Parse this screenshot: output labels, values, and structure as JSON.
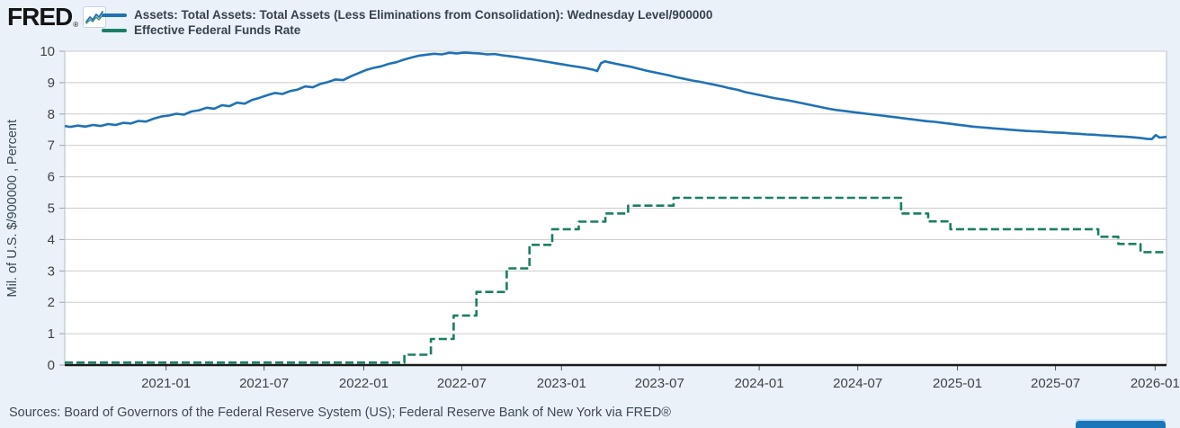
{
  "header": {
    "logo_text": "FRED",
    "logo_registered": "®",
    "legend": [
      {
        "label": "Assets: Total Assets: Total Assets (Less Eliminations from Consolidation): Wednesday Level/900000",
        "color": "#2171b5"
      },
      {
        "label": "Effective Federal Funds Rate",
        "color": "#1b7e66"
      }
    ]
  },
  "footer": {
    "sources": "Sources: Board of Governors of the Federal Reserve System (US); Federal Reserve Bank of New York via FRED®"
  },
  "colors": {
    "page_background": "#eaf1f9",
    "plot_background": "#ffffff",
    "gridline": "#cbcbcb",
    "axis_line": "#1a1a1a",
    "tick_label": "#424242",
    "assets_line": "#2171b5",
    "effr_line": "#1b7e66"
  },
  "chart_data": {
    "type": "line",
    "title": "",
    "xlabel": "",
    "ylabel": "Mil. of U.S. $/900000 , Percent",
    "ylim": [
      0,
      10
    ],
    "y_ticks": [
      0,
      1,
      2,
      3,
      4,
      5,
      6,
      7,
      8,
      9,
      10
    ],
    "x_ticks": [
      "2021-01",
      "2021-07",
      "2022-01",
      "2022-07",
      "2023-01",
      "2023-07",
      "2024-01",
      "2024-07",
      "2025-01",
      "2025-07",
      "2026-01"
    ],
    "x_domain": [
      "2020-06-28",
      "2026-01-22"
    ],
    "grid": "horizontal-only",
    "legend_position": "top-left",
    "series": [
      {
        "name": "Assets: Total Assets: Total Assets (Less Eliminations from Consolidation): Wednesday Level/900000",
        "color": "#2171b5",
        "style": "solid",
        "step": false,
        "points": [
          [
            "2020-06-28",
            7.62
          ],
          [
            "2020-07-08",
            7.59
          ],
          [
            "2020-07-22",
            7.63
          ],
          [
            "2020-08-05",
            7.6
          ],
          [
            "2020-08-19",
            7.65
          ],
          [
            "2020-09-02",
            7.62
          ],
          [
            "2020-09-16",
            7.68
          ],
          [
            "2020-09-30",
            7.65
          ],
          [
            "2020-10-14",
            7.72
          ],
          [
            "2020-10-28",
            7.7
          ],
          [
            "2020-11-11",
            7.78
          ],
          [
            "2020-11-25",
            7.76
          ],
          [
            "2020-12-09",
            7.85
          ],
          [
            "2020-12-23",
            7.92
          ],
          [
            "2021-01-06",
            7.95
          ],
          [
            "2021-01-20",
            8.01
          ],
          [
            "2021-02-03",
            7.98
          ],
          [
            "2021-02-17",
            8.08
          ],
          [
            "2021-03-03",
            8.12
          ],
          [
            "2021-03-17",
            8.2
          ],
          [
            "2021-03-31",
            8.17
          ],
          [
            "2021-04-14",
            8.28
          ],
          [
            "2021-04-28",
            8.25
          ],
          [
            "2021-05-12",
            8.36
          ],
          [
            "2021-05-26",
            8.33
          ],
          [
            "2021-06-09",
            8.45
          ],
          [
            "2021-06-23",
            8.52
          ],
          [
            "2021-07-07",
            8.6
          ],
          [
            "2021-07-21",
            8.67
          ],
          [
            "2021-08-04",
            8.64
          ],
          [
            "2021-08-18",
            8.73
          ],
          [
            "2021-09-01",
            8.78
          ],
          [
            "2021-09-15",
            8.88
          ],
          [
            "2021-09-29",
            8.85
          ],
          [
            "2021-10-13",
            8.96
          ],
          [
            "2021-10-27",
            9.02
          ],
          [
            "2021-11-10",
            9.1
          ],
          [
            "2021-11-24",
            9.08
          ],
          [
            "2021-12-08",
            9.2
          ],
          [
            "2021-12-22",
            9.3
          ],
          [
            "2022-01-05",
            9.4
          ],
          [
            "2022-01-19",
            9.47
          ],
          [
            "2022-02-02",
            9.52
          ],
          [
            "2022-02-16",
            9.6
          ],
          [
            "2022-03-02",
            9.65
          ],
          [
            "2022-03-16",
            9.73
          ],
          [
            "2022-03-30",
            9.8
          ],
          [
            "2022-04-13",
            9.86
          ],
          [
            "2022-04-27",
            9.89
          ],
          [
            "2022-05-11",
            9.92
          ],
          [
            "2022-05-25",
            9.9
          ],
          [
            "2022-06-08",
            9.95
          ],
          [
            "2022-06-22",
            9.93
          ],
          [
            "2022-07-06",
            9.96
          ],
          [
            "2022-07-20",
            9.94
          ],
          [
            "2022-08-03",
            9.93
          ],
          [
            "2022-08-17",
            9.9
          ],
          [
            "2022-08-31",
            9.91
          ],
          [
            "2022-09-14",
            9.87
          ],
          [
            "2022-09-28",
            9.84
          ],
          [
            "2022-10-12",
            9.81
          ],
          [
            "2022-10-26",
            9.77
          ],
          [
            "2022-11-09",
            9.74
          ],
          [
            "2022-11-23",
            9.7
          ],
          [
            "2022-12-07",
            9.66
          ],
          [
            "2022-12-21",
            9.62
          ],
          [
            "2023-01-04",
            9.58
          ],
          [
            "2023-01-18",
            9.54
          ],
          [
            "2023-02-01",
            9.5
          ],
          [
            "2023-02-15",
            9.46
          ],
          [
            "2023-03-01",
            9.41
          ],
          [
            "2023-03-08",
            9.37
          ],
          [
            "2023-03-15",
            9.62
          ],
          [
            "2023-03-22",
            9.68
          ],
          [
            "2023-03-29",
            9.65
          ],
          [
            "2023-04-12",
            9.6
          ],
          [
            "2023-04-26",
            9.55
          ],
          [
            "2023-05-10",
            9.5
          ],
          [
            "2023-05-24",
            9.44
          ],
          [
            "2023-06-07",
            9.38
          ],
          [
            "2023-06-21",
            9.33
          ],
          [
            "2023-07-05",
            9.28
          ],
          [
            "2023-07-19",
            9.23
          ],
          [
            "2023-08-02",
            9.17
          ],
          [
            "2023-08-16",
            9.12
          ],
          [
            "2023-08-30",
            9.07
          ],
          [
            "2023-09-13",
            9.03
          ],
          [
            "2023-09-27",
            8.98
          ],
          [
            "2023-10-11",
            8.93
          ],
          [
            "2023-10-25",
            8.88
          ],
          [
            "2023-11-08",
            8.82
          ],
          [
            "2023-11-22",
            8.77
          ],
          [
            "2023-12-06",
            8.7
          ],
          [
            "2023-12-20",
            8.65
          ],
          [
            "2024-01-03",
            8.6
          ],
          [
            "2024-01-17",
            8.55
          ],
          [
            "2024-01-31",
            8.5
          ],
          [
            "2024-02-14",
            8.46
          ],
          [
            "2024-02-28",
            8.42
          ],
          [
            "2024-03-13",
            8.37
          ],
          [
            "2024-03-27",
            8.32
          ],
          [
            "2024-04-10",
            8.27
          ],
          [
            "2024-04-24",
            8.22
          ],
          [
            "2024-05-08",
            8.17
          ],
          [
            "2024-05-22",
            8.13
          ],
          [
            "2024-06-05",
            8.1
          ],
          [
            "2024-06-19",
            8.07
          ],
          [
            "2024-07-03",
            8.04
          ],
          [
            "2024-07-17",
            8.01
          ],
          [
            "2024-07-31",
            7.98
          ],
          [
            "2024-08-14",
            7.95
          ],
          [
            "2024-08-28",
            7.92
          ],
          [
            "2024-09-11",
            7.89
          ],
          [
            "2024-09-25",
            7.86
          ],
          [
            "2024-10-09",
            7.83
          ],
          [
            "2024-10-23",
            7.8
          ],
          [
            "2024-11-06",
            7.77
          ],
          [
            "2024-11-20",
            7.75
          ],
          [
            "2024-12-04",
            7.72
          ],
          [
            "2024-12-18",
            7.69
          ],
          [
            "2025-01-01",
            7.66
          ],
          [
            "2025-01-15",
            7.63
          ],
          [
            "2025-01-29",
            7.6
          ],
          [
            "2025-02-12",
            7.58
          ],
          [
            "2025-02-26",
            7.56
          ],
          [
            "2025-03-12",
            7.54
          ],
          [
            "2025-03-26",
            7.52
          ],
          [
            "2025-04-09",
            7.5
          ],
          [
            "2025-04-23",
            7.48
          ],
          [
            "2025-05-07",
            7.46
          ],
          [
            "2025-05-21",
            7.45
          ],
          [
            "2025-06-04",
            7.44
          ],
          [
            "2025-06-18",
            7.42
          ],
          [
            "2025-07-02",
            7.41
          ],
          [
            "2025-07-16",
            7.4
          ],
          [
            "2025-07-30",
            7.38
          ],
          [
            "2025-08-13",
            7.37
          ],
          [
            "2025-08-27",
            7.35
          ],
          [
            "2025-09-10",
            7.34
          ],
          [
            "2025-09-24",
            7.32
          ],
          [
            "2025-10-08",
            7.31
          ],
          [
            "2025-10-22",
            7.29
          ],
          [
            "2025-11-05",
            7.28
          ],
          [
            "2025-11-19",
            7.26
          ],
          [
            "2025-12-03",
            7.24
          ],
          [
            "2025-12-17",
            7.21
          ],
          [
            "2025-12-26",
            7.2
          ],
          [
            "2026-01-02",
            7.33
          ],
          [
            "2026-01-09",
            7.25
          ],
          [
            "2026-01-22",
            7.27
          ]
        ]
      },
      {
        "name": "Effective Federal Funds Rate",
        "color": "#1b7e66",
        "style": "dashed",
        "step": true,
        "points": [
          [
            "2020-06-28",
            0.08
          ],
          [
            "2022-03-17",
            0.33
          ],
          [
            "2022-05-05",
            0.83
          ],
          [
            "2022-06-16",
            1.58
          ],
          [
            "2022-07-28",
            2.33
          ],
          [
            "2022-09-22",
            3.08
          ],
          [
            "2022-11-03",
            3.83
          ],
          [
            "2022-12-15",
            4.33
          ],
          [
            "2023-02-02",
            4.57
          ],
          [
            "2023-03-23",
            4.83
          ],
          [
            "2023-05-04",
            5.08
          ],
          [
            "2023-07-27",
            5.33
          ],
          [
            "2024-09-19",
            4.83
          ],
          [
            "2024-11-08",
            4.58
          ],
          [
            "2024-12-19",
            4.33
          ],
          [
            "2025-09-18",
            4.09
          ],
          [
            "2025-10-25",
            3.86
          ],
          [
            "2025-12-05",
            3.6
          ],
          [
            "2026-01-22",
            3.6
          ]
        ]
      }
    ]
  }
}
